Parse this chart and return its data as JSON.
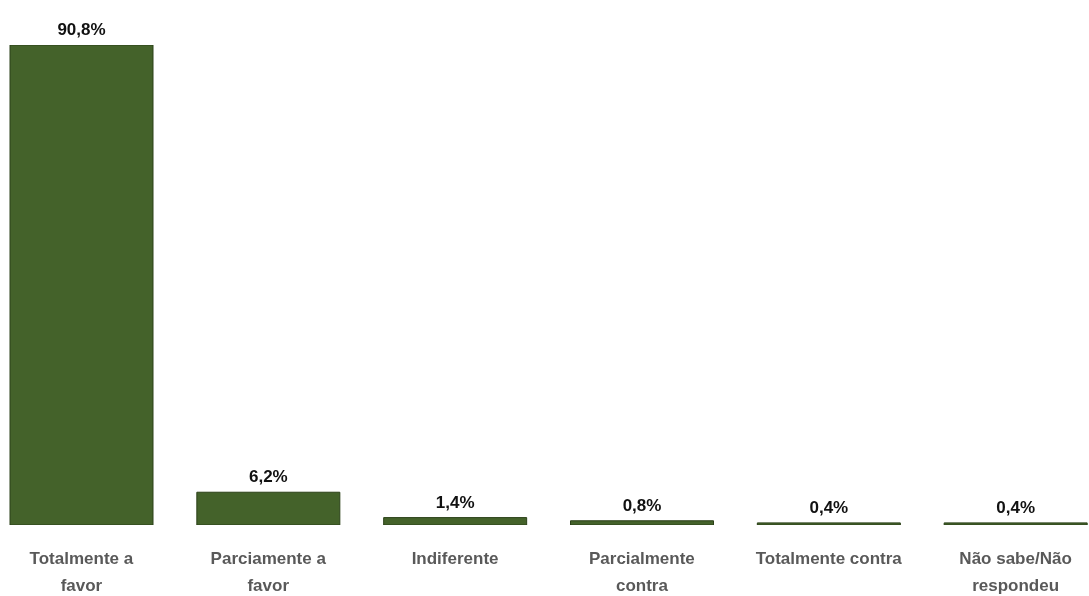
{
  "chart_data": {
    "type": "bar",
    "categories": [
      "Totalmente a favor",
      "Parciamente a favor",
      "Indiferente",
      "Parcialmente contra",
      "Totalmente contra",
      "Não sabe/Não respondeu"
    ],
    "values": [
      90.8,
      6.2,
      1.4,
      0.8,
      0.4,
      0.4
    ],
    "color": "#44622a",
    "value_labels": [
      "90,8%",
      "6,2%",
      "1,4%",
      "0,8%",
      "0,4%",
      "0,4%"
    ]
  }
}
